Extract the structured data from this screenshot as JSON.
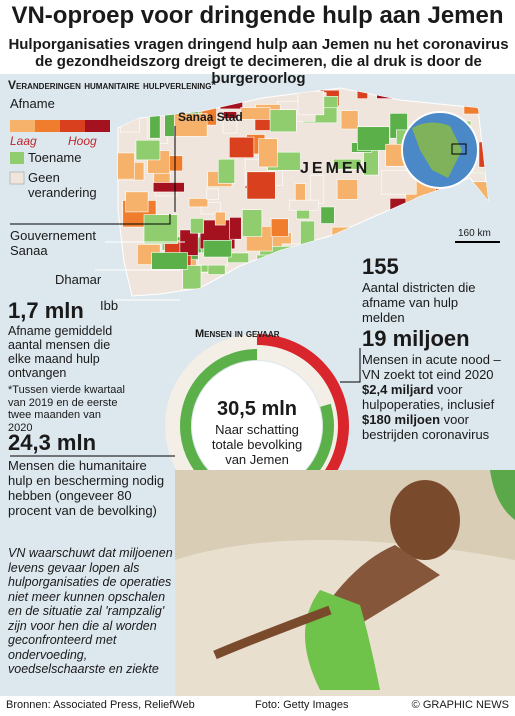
{
  "header": {
    "title": "VN-oproep voor dringende hulp aan Jemen",
    "subtitle": "Hulporganisaties vragen dringend hulp aan Jemen nu het coronavirus de gezondheidszorg dreigt te decimeren, die al druk is door de burgeroorlog"
  },
  "map": {
    "title": "Veranderingen humanitaire hulpverlening*",
    "legend": {
      "decrease": "Afname",
      "low": "Laag",
      "high": "Hoog",
      "increase": "Toename",
      "none": "Geen verandering"
    },
    "country": "JEMEN",
    "places": [
      "Sanaa Stad",
      "Gouvernement Sanaa",
      "Dhamar",
      "Ibb"
    ],
    "scale": "160 km"
  },
  "stats": [
    {
      "number": "1,7 mln",
      "text": "Afname gemiddeld aantal mensen die elke maand hulp ontvangen",
      "note": "*Tussen vierde kwartaal van 2019 en de eerste twee maanden van 2020"
    },
    {
      "number": "155",
      "text": "Aantal districten die afname van hulp melden"
    }
  ],
  "chart_data": {
    "type": "donut",
    "title": "Mensen in gevaar",
    "total": 30.5,
    "total_label": "30,5 mln",
    "total_text": "Naar schatting totale bevolking van Jemen",
    "values": [
      24.3,
      19
    ],
    "value_labels": [
      "24,3 mln",
      "19 miljoen"
    ],
    "colors": [
      "#5bb04a",
      "#d8262c"
    ],
    "descriptions": [
      [
        "Mensen die humanitaire hulp en bescherming nodig hebben (ongeveer 80 procent van de bevolking)"
      ],
      [
        "Mensen in acute nood – VN zoekt tot eind 2020",
        "$2,4 miljard",
        "voor hulpoperaties, inclusief",
        "$180 miljoen",
        "voor bestrijden coronavirus"
      ]
    ]
  },
  "warning": "VN waarschuwt dat miljoenen levens gevaar lopen als hulporganisaties de operaties niet meer kunnen opschalen en de situatie zal 'rampzalig' zijn voor hen die al worden geconfronteerd met ondervoeding, voedselschaarste en ziekte",
  "footer": {
    "sources": "Bronnen: Associated Press, ReliefWeb",
    "photo": "Foto: Getty Images",
    "credit": "© GRAPHIC NEWS"
  }
}
